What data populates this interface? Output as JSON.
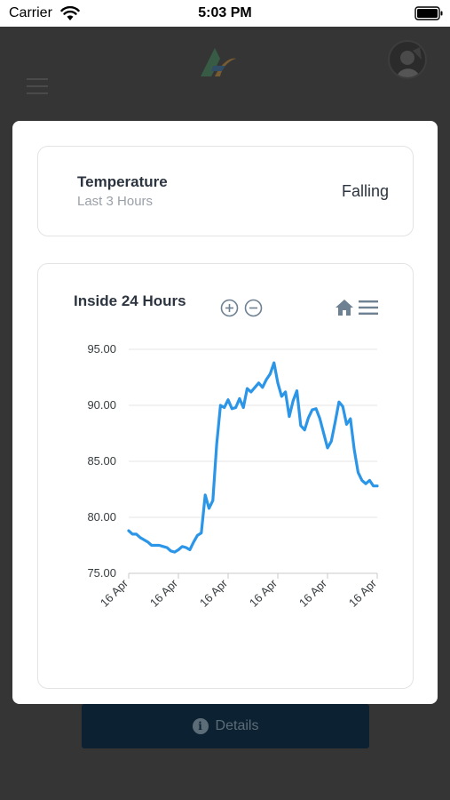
{
  "status_bar": {
    "carrier": "Carrier",
    "time": "5:03 PM"
  },
  "header": {
    "menu_icon": "hamburger-icon",
    "logo_icon": "brand-logo",
    "avatar_icon": "user-avatar"
  },
  "temperature_card": {
    "title": "Temperature",
    "subtitle": "Last 3 Hours",
    "trend": "Falling"
  },
  "details_button": {
    "label": "Details",
    "icon": "info-icon"
  },
  "colors": {
    "line": "#2b96e8",
    "backdrop": "#353535",
    "button": "#0c2233",
    "toolbar": "#6e8192"
  },
  "chart_data": {
    "type": "line",
    "title": "Inside 24 Hours",
    "toolbar": [
      "zoom-in",
      "zoom-out",
      "reset-home",
      "menu"
    ],
    "ylim": [
      75,
      95
    ],
    "y_ticks": [
      "95.00",
      "90.00",
      "85.00",
      "80.00",
      "75.00"
    ],
    "x_tick_labels": [
      "16 Apr",
      "16 Apr",
      "16 Apr",
      "16 Apr",
      "16 Apr",
      "16 Apr"
    ],
    "grid": true,
    "series": [
      {
        "values": [
          78.8,
          78.5,
          78.5,
          78.2,
          78.0,
          77.8,
          77.5,
          77.5,
          77.5,
          77.4,
          77.3,
          77.0,
          76.9,
          77.1,
          77.4,
          77.3,
          77.1,
          77.8,
          78.4,
          78.6,
          82.0,
          80.8,
          81.5,
          86.5,
          90.0,
          89.8,
          90.5,
          89.7,
          89.8,
          90.6,
          89.8,
          91.5,
          91.2,
          91.6,
          92.0,
          91.6,
          92.3,
          92.8,
          93.8,
          92.0,
          90.8,
          91.2,
          89.0,
          90.4,
          91.3,
          88.2,
          87.8,
          88.9,
          89.6,
          89.7,
          88.8,
          87.5,
          86.2,
          86.8,
          88.5,
          90.3,
          89.9,
          88.3,
          88.8,
          86.0,
          84.0,
          83.3,
          83.0,
          83.3,
          82.8,
          82.8
        ]
      }
    ]
  }
}
